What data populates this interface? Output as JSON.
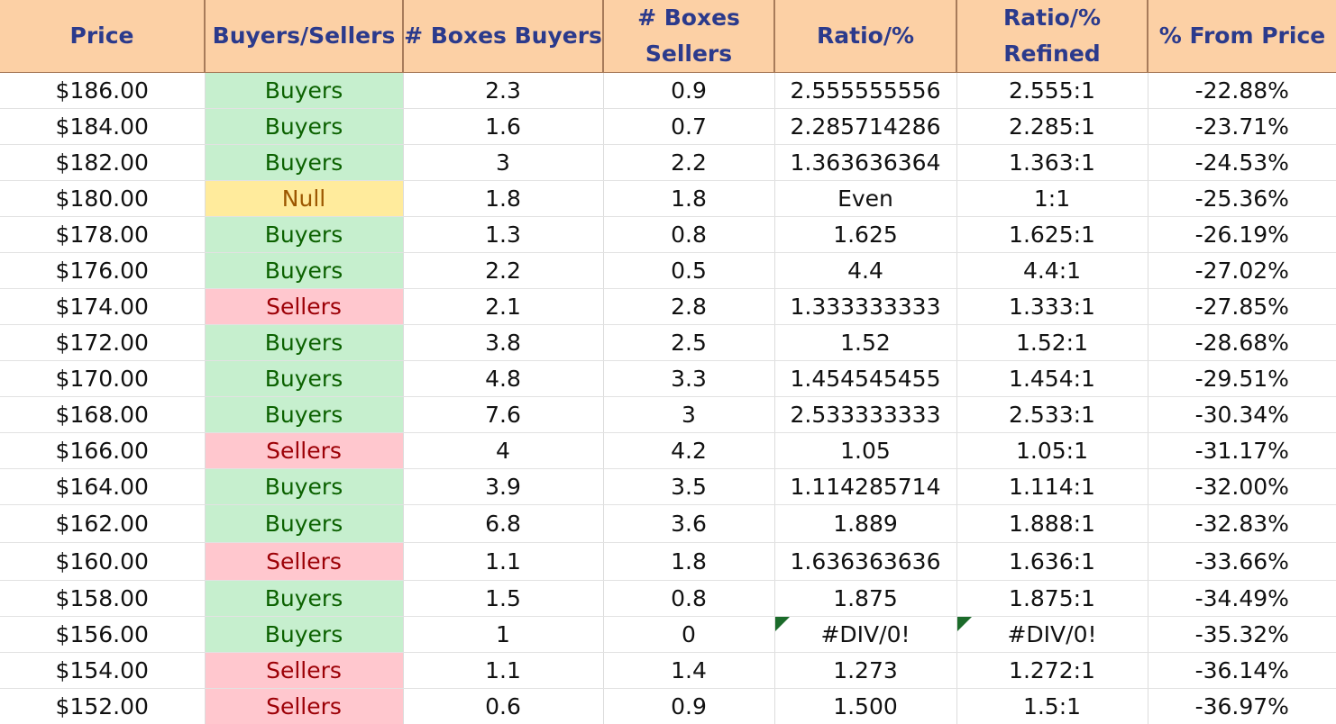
{
  "headers": {
    "price": "Price",
    "side": "Buyers/Sellers",
    "boxes_buyers": "# Boxes Buyers",
    "boxes_sellers": "# Boxes Sellers",
    "ratio": "Ratio/%",
    "ratio_refined": "Ratio/% Refined",
    "pct_from_price": "% From Price"
  },
  "rows": [
    {
      "price": "$186.00",
      "side": "Buyers",
      "boxes_buyers": "2.3",
      "boxes_sellers": "0.9",
      "ratio": "2.555555556",
      "ratio_refined": "2.555:1",
      "pct": "-22.88%"
    },
    {
      "price": "$184.00",
      "side": "Buyers",
      "boxes_buyers": "1.6",
      "boxes_sellers": "0.7",
      "ratio": "2.285714286",
      "ratio_refined": "2.285:1",
      "pct": "-23.71%"
    },
    {
      "price": "$182.00",
      "side": "Buyers",
      "boxes_buyers": "3",
      "boxes_sellers": "2.2",
      "ratio": "1.363636364",
      "ratio_refined": "1.363:1",
      "pct": "-24.53%"
    },
    {
      "price": "$180.00",
      "side": "Null",
      "boxes_buyers": "1.8",
      "boxes_sellers": "1.8",
      "ratio": "Even",
      "ratio_refined": "1:1",
      "pct": "-25.36%"
    },
    {
      "price": "$178.00",
      "side": "Buyers",
      "boxes_buyers": "1.3",
      "boxes_sellers": "0.8",
      "ratio": "1.625",
      "ratio_refined": "1.625:1",
      "pct": "-26.19%"
    },
    {
      "price": "$176.00",
      "side": "Buyers",
      "boxes_buyers": "2.2",
      "boxes_sellers": "0.5",
      "ratio": "4.4",
      "ratio_refined": "4.4:1",
      "pct": "-27.02%"
    },
    {
      "price": "$174.00",
      "side": "Sellers",
      "boxes_buyers": "2.1",
      "boxes_sellers": "2.8",
      "ratio": "1.333333333",
      "ratio_refined": "1.333:1",
      "pct": "-27.85%"
    },
    {
      "price": "$172.00",
      "side": "Buyers",
      "boxes_buyers": "3.8",
      "boxes_sellers": "2.5",
      "ratio": "1.52",
      "ratio_refined": "1.52:1",
      "pct": "-28.68%"
    },
    {
      "price": "$170.00",
      "side": "Buyers",
      "boxes_buyers": "4.8",
      "boxes_sellers": "3.3",
      "ratio": "1.454545455",
      "ratio_refined": "1.454:1",
      "pct": "-29.51%"
    },
    {
      "price": "$168.00",
      "side": "Buyers",
      "boxes_buyers": "7.6",
      "boxes_sellers": "3",
      "ratio": "2.533333333",
      "ratio_refined": "2.533:1",
      "pct": "-30.34%"
    },
    {
      "price": "$166.00",
      "side": "Sellers",
      "boxes_buyers": "4",
      "boxes_sellers": "4.2",
      "ratio": "1.05",
      "ratio_refined": "1.05:1",
      "pct": "-31.17%"
    },
    {
      "price": "$164.00",
      "side": "Buyers",
      "boxes_buyers": "3.9",
      "boxes_sellers": "3.5",
      "ratio": "1.114285714",
      "ratio_refined": "1.114:1",
      "pct": "-32.00%"
    },
    {
      "price": "$162.00",
      "side": "Buyers",
      "boxes_buyers": "6.8",
      "boxes_sellers": "3.6",
      "ratio": "1.889",
      "ratio_refined": "1.888:1",
      "pct": "-32.83%"
    },
    {
      "price": "$160.00",
      "side": "Sellers",
      "boxes_buyers": "1.1",
      "boxes_sellers": "1.8",
      "ratio": "1.636363636",
      "ratio_refined": "1.636:1",
      "pct": "-33.66%"
    },
    {
      "price": "$158.00",
      "side": "Buyers",
      "boxes_buyers": "1.5",
      "boxes_sellers": "0.8",
      "ratio": "1.875",
      "ratio_refined": "1.875:1",
      "pct": "-34.49%"
    },
    {
      "price": "$156.00",
      "side": "Buyers",
      "boxes_buyers": "1",
      "boxes_sellers": "0",
      "ratio": "#DIV/0!",
      "ratio_refined": "#DIV/0!",
      "pct": "-35.32%"
    },
    {
      "price": "$154.00",
      "side": "Sellers",
      "boxes_buyers": "1.1",
      "boxes_sellers": "1.4",
      "ratio": "1.273",
      "ratio_refined": "1.272:1",
      "pct": "-36.14%"
    },
    {
      "price": "$152.00",
      "side": "Sellers",
      "boxes_buyers": "0.6",
      "boxes_sellers": "0.9",
      "ratio": "1.500",
      "ratio_refined": "1.5:1",
      "pct": "-36.97%"
    }
  ],
  "colors": {
    "header_bg": "#fcd0a5",
    "header_text": "#2b3a8c",
    "buyers_bg": "#c6efce",
    "buyers_text": "#0b6100",
    "sellers_bg": "#ffc7ce",
    "sellers_text": "#9c0006",
    "null_bg": "#ffeb9c",
    "null_text": "#9c5700",
    "error_flag": "#1b6b2a"
  }
}
